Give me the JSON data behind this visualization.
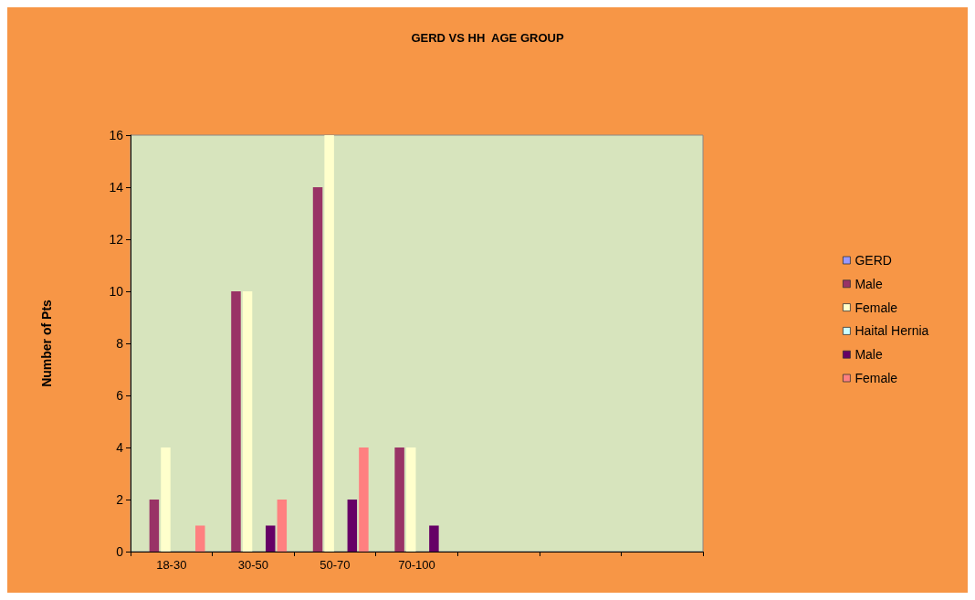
{
  "chart_data": {
    "type": "bar",
    "title": "GERD VS HH  AGE GROUP",
    "ylabel": "Number of Pts",
    "categories": [
      "18-30",
      "30-50",
      "50-70",
      "70-100",
      null,
      null,
      null
    ],
    "series": [
      {
        "name": "GERD",
        "color": "#9999ff",
        "values": [
          null,
          null,
          null,
          null,
          null,
          null,
          null
        ]
      },
      {
        "name": "Male",
        "color": "#993366",
        "values": [
          2,
          10,
          14,
          4,
          null,
          null,
          null
        ]
      },
      {
        "name": "Female",
        "color": "#ffffcc",
        "values": [
          4,
          10,
          16,
          4,
          null,
          null,
          null
        ]
      },
      {
        "name": "Haital Hernia",
        "color": "#ccffff",
        "values": [
          null,
          null,
          null,
          null,
          null,
          null,
          null
        ]
      },
      {
        "name": "Male",
        "color": "#660066",
        "values": [
          0,
          1,
          2,
          1,
          null,
          null,
          null
        ]
      },
      {
        "name": "Female",
        "color": "#ff8080",
        "values": [
          1,
          2,
          4,
          0,
          null,
          null,
          null
        ]
      }
    ],
    "ylim": [
      0,
      16
    ],
    "yticks": [
      0,
      2,
      4,
      6,
      8,
      10,
      12,
      14,
      16
    ],
    "grid": false,
    "legend": "right"
  }
}
